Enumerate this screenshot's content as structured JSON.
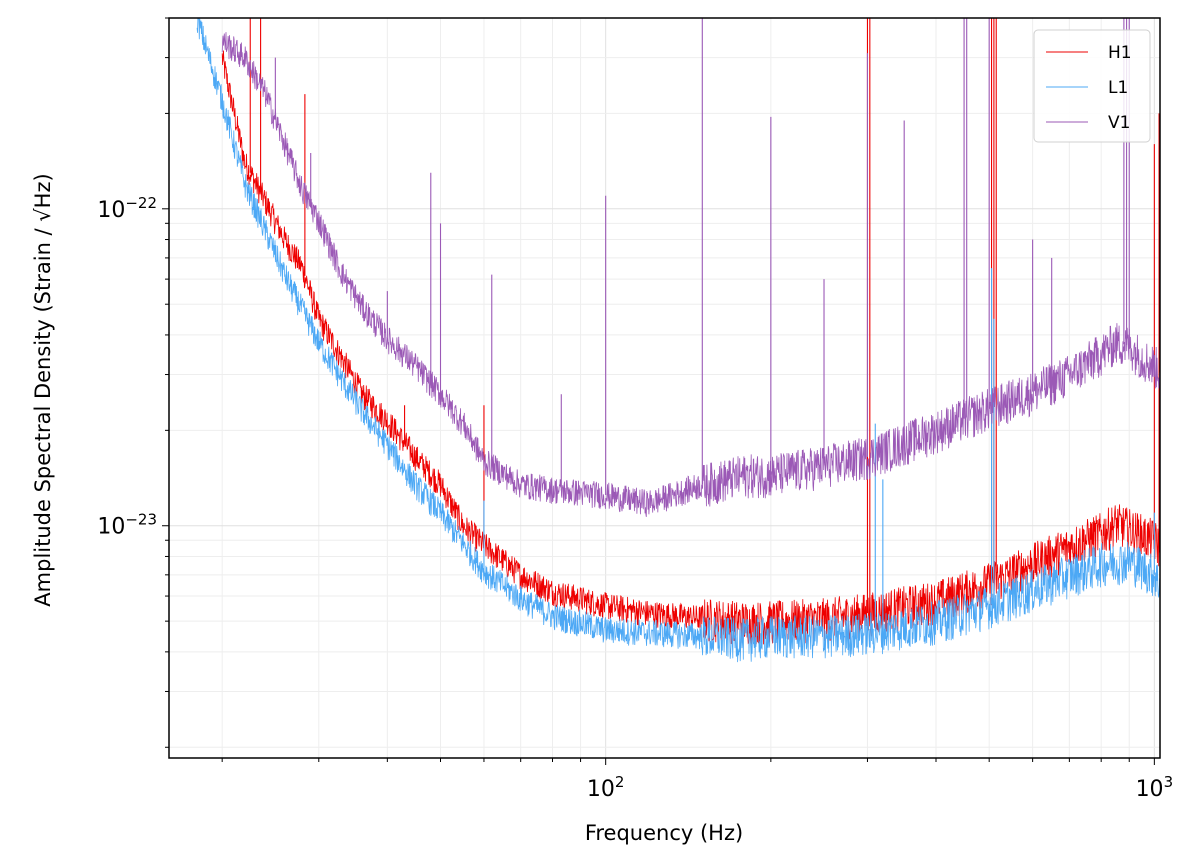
{
  "chart_data": {
    "type": "line",
    "title": "",
    "xlabel": "Frequency (Hz)",
    "ylabel": "Amplitude Spectral Density (Strain / √Hz)",
    "xscale": "log",
    "yscale": "log",
    "xlim": [
      16,
      1024
    ],
    "ylim": [
      1.85e-24,
      4e-22
    ],
    "grid": true,
    "legend_position": "top-right",
    "x_ticks": [
      {
        "value": 100,
        "mantissa": "10",
        "exp": "2"
      },
      {
        "value": 1000,
        "mantissa": "10",
        "exp": "3"
      }
    ],
    "y_ticks": [
      {
        "value": 1e-23,
        "mantissa": "10",
        "exp": "−23"
      },
      {
        "value": 1e-22,
        "mantissa": "10",
        "exp": "−22"
      }
    ],
    "series": [
      {
        "name": "H1",
        "color": "#ee0000",
        "x": [
          20,
          22,
          24,
          26,
          28,
          30,
          33,
          36,
          40,
          45,
          50,
          55,
          60,
          70,
          80,
          100,
          120,
          150,
          180,
          200,
          250,
          300,
          400,
          500,
          600,
          700,
          800,
          850,
          900,
          1000,
          1024
        ],
        "y": [
          3e-22,
          1.4e-22,
          1.05e-22,
          8e-23,
          6.5e-23,
          4.5e-23,
          3.4e-23,
          2.6e-23,
          2.15e-23,
          1.65e-23,
          1.35e-23,
          1e-23,
          8.7e-24,
          7e-24,
          6.2e-24,
          5.6e-24,
          5.3e-24,
          5.1e-24,
          5e-24,
          5e-24,
          5.1e-24,
          5.3e-24,
          5.8e-24,
          6.6e-24,
          7.6e-24,
          8.6e-24,
          9.5e-24,
          1.02e-23,
          9.8e-24,
          9e-24,
          8.6e-24
        ],
        "lines": [
          {
            "f": 22.5,
            "peak": 4e-22
          },
          {
            "f": 23.5,
            "peak": 4e-22
          },
          {
            "f": 28.3,
            "peak": 2.3e-22
          },
          {
            "f": 43,
            "peak": 2.4e-23
          },
          {
            "f": 60,
            "peak": 2.4e-23
          },
          {
            "f": 300,
            "peak": 4e-22
          },
          {
            "f": 303,
            "peak": 4e-22
          },
          {
            "f": 505,
            "peak": 4e-22
          },
          {
            "f": 510,
            "peak": 4e-22
          },
          {
            "f": 515,
            "peak": 4e-22
          },
          {
            "f": 1000,
            "peak": 1.6e-22
          },
          {
            "f": 1020,
            "peak": 2e-22
          }
        ]
      },
      {
        "name": "L1",
        "color": "#4ca8f5",
        "x": [
          18,
          20,
          22,
          24,
          26,
          28,
          30,
          33,
          36,
          40,
          45,
          50,
          55,
          60,
          70,
          80,
          100,
          120,
          150,
          180,
          200,
          250,
          300,
          400,
          500,
          600,
          700,
          800,
          900,
          1000,
          1024
        ],
        "y": [
          4e-22,
          2.2e-22,
          1.2e-22,
          8.5e-23,
          6.2e-23,
          4.8e-23,
          3.8e-23,
          2.9e-23,
          2.3e-23,
          1.8e-23,
          1.35e-23,
          1.1e-23,
          8.8e-24,
          7.2e-24,
          5.9e-24,
          5.2e-24,
          4.7e-24,
          4.6e-24,
          4.5e-24,
          4.4e-24,
          4.5e-24,
          4.5e-24,
          4.6e-24,
          5e-24,
          5.6e-24,
          6.3e-24,
          7e-24,
          7.6e-24,
          7.8e-24,
          7e-24,
          6.5e-24
        ],
        "lines": [
          {
            "f": 60,
            "peak": 1.2e-23
          },
          {
            "f": 310,
            "peak": 2.1e-23
          },
          {
            "f": 320,
            "peak": 1.4e-23
          },
          {
            "f": 505,
            "peak": 6.5e-23
          },
          {
            "f": 510,
            "peak": 4.5e-23
          },
          {
            "f": 1000,
            "peak": 1.1e-23
          }
        ]
      },
      {
        "name": "V1",
        "color": "#9b59b6",
        "x": [
          20,
          22,
          24,
          26,
          28,
          30,
          33,
          36,
          40,
          45,
          50,
          55,
          60,
          70,
          80,
          100,
          120,
          150,
          180,
          200,
          250,
          300,
          400,
          500,
          600,
          700,
          800,
          850,
          900,
          950,
          1000,
          1024
        ],
        "y": [
          3.4e-22,
          3e-22,
          2.3e-22,
          1.6e-22,
          1.15e-22,
          9.2e-23,
          6.3e-23,
          4.9e-23,
          3.9e-23,
          3.2e-23,
          2.6e-23,
          2.1e-23,
          1.6e-23,
          1.35e-23,
          1.3e-23,
          1.25e-23,
          1.18e-23,
          1.35e-23,
          1.45e-23,
          1.45e-23,
          1.55e-23,
          1.65e-23,
          2e-23,
          2.35e-23,
          2.65e-23,
          3e-23,
          3.5e-23,
          3.8e-23,
          3.7e-23,
          3.4e-23,
          3.2e-23,
          3.1e-23
        ],
        "lines": [
          {
            "f": 25,
            "peak": 3e-22
          },
          {
            "f": 29,
            "peak": 1.5e-22
          },
          {
            "f": 40,
            "peak": 5.5e-23
          },
          {
            "f": 48,
            "peak": 1.3e-22
          },
          {
            "f": 50,
            "peak": 9e-23
          },
          {
            "f": 62,
            "peak": 6.2e-23
          },
          {
            "f": 83,
            "peak": 2.6e-23
          },
          {
            "f": 100,
            "peak": 1.1e-22
          },
          {
            "f": 150,
            "peak": 4e-22
          },
          {
            "f": 200,
            "peak": 1.95e-22
          },
          {
            "f": 250,
            "peak": 6e-23
          },
          {
            "f": 300,
            "peak": 3.1e-22
          },
          {
            "f": 350,
            "peak": 1.9e-22
          },
          {
            "f": 450,
            "peak": 4e-22
          },
          {
            "f": 455,
            "peak": 4e-22
          },
          {
            "f": 500,
            "peak": 4e-22
          },
          {
            "f": 600,
            "peak": 8e-23
          },
          {
            "f": 650,
            "peak": 7e-23
          },
          {
            "f": 880,
            "peak": 4e-22
          },
          {
            "f": 890,
            "peak": 4e-22
          },
          {
            "f": 900,
            "peak": 4e-22
          }
        ]
      }
    ]
  }
}
